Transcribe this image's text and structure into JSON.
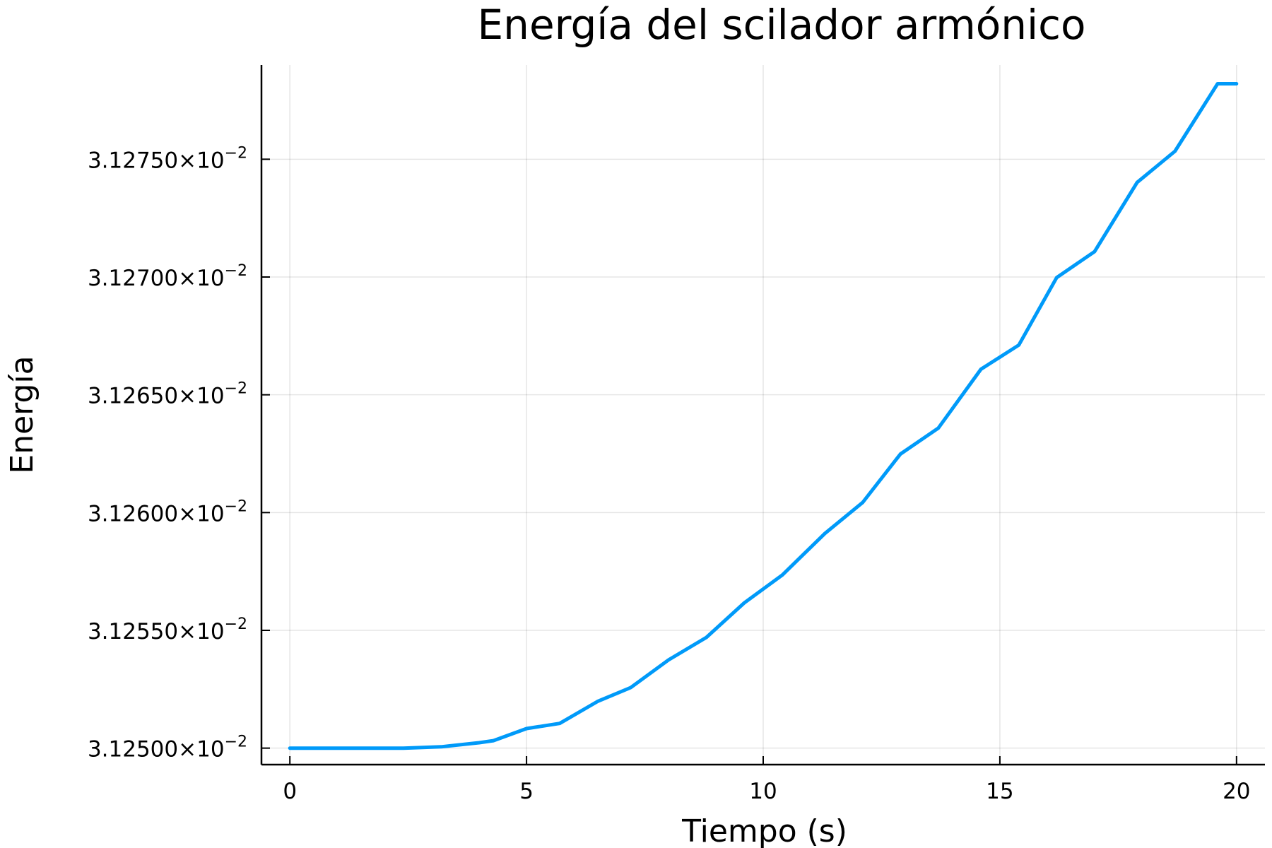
{
  "chart_data": {
    "type": "line",
    "title": "Energía del scilador armónico",
    "xlabel": "Tiempo (s)",
    "ylabel": "Energía",
    "xlim": [
      -0.6,
      20.6
    ],
    "ylim": [
      0.0312493,
      0.031279
    ],
    "grid": true,
    "legend": "none",
    "x_ticks": [
      {
        "value": 0,
        "label": "0"
      },
      {
        "value": 5,
        "label": "5"
      },
      {
        "value": 10,
        "label": "10"
      },
      {
        "value": 15,
        "label": "15"
      },
      {
        "value": 20,
        "label": "20"
      }
    ],
    "y_ticks": [
      {
        "value": 0.03125,
        "mantissa": "3.12500×10",
        "exponent": "−2"
      },
      {
        "value": 0.031255,
        "mantissa": "3.12550×10",
        "exponent": "−2"
      },
      {
        "value": 0.03126,
        "mantissa": "3.12600×10",
        "exponent": "−2"
      },
      {
        "value": 0.031265,
        "mantissa": "3.12650×10",
        "exponent": "−2"
      },
      {
        "value": 0.03127,
        "mantissa": "3.12700×10",
        "exponent": "−2"
      },
      {
        "value": 0.031275,
        "mantissa": "3.12750×10",
        "exponent": "−2"
      }
    ],
    "series": [
      {
        "name": "Energía",
        "color": "#009af9",
        "x": [
          0,
          0.8,
          1.6,
          2.4,
          3.2,
          4.0,
          4.3,
          5.0,
          5.7,
          6.5,
          7.2,
          8.0,
          8.8,
          9.6,
          10.4,
          11.3,
          12.1,
          12.9,
          13.7,
          14.6,
          15.4,
          16.2,
          17.0,
          17.9,
          18.7,
          19.6,
          20.0
        ],
        "y": [
          0.03125,
          0.03125,
          0.031249997,
          0.031249997,
          0.031250055,
          0.031250231,
          0.031250316,
          0.031250829,
          0.031251049,
          0.031251981,
          0.031252569,
          0.031253744,
          0.031254699,
          0.031256168,
          0.031257343,
          0.031259106,
          0.031260428,
          0.031262485,
          0.031263586,
          0.031266084,
          0.031267112,
          0.031269977,
          0.031271078,
          0.031274017,
          0.031275339,
          0.031278204,
          0.031278204
        ]
      }
    ]
  }
}
